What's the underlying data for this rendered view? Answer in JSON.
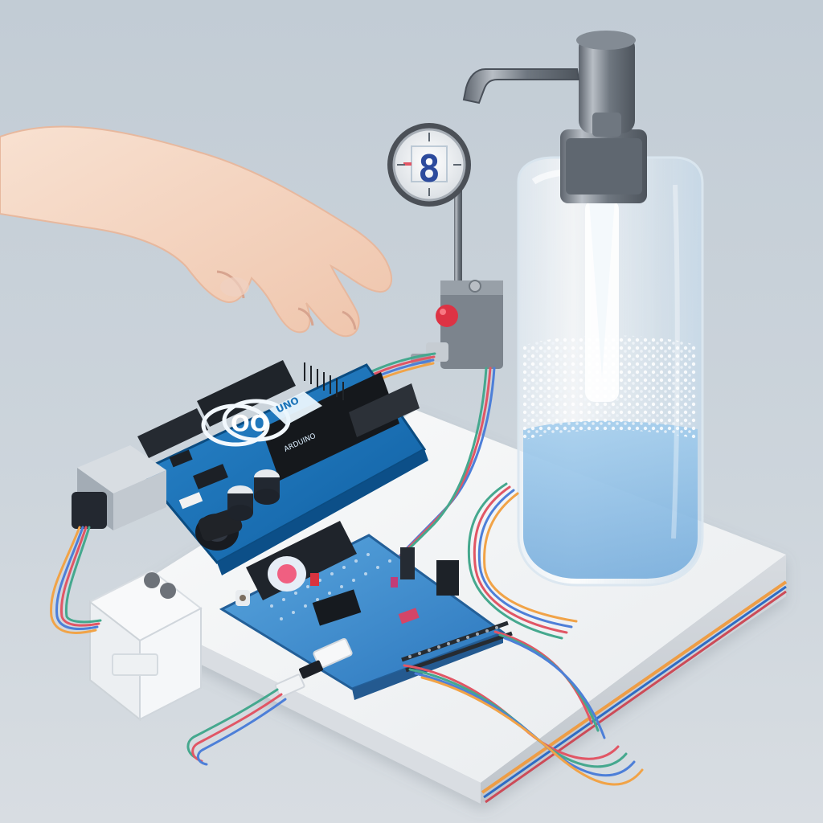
{
  "scene": {
    "board_logo_text": "OO",
    "board_label_text": "UNO",
    "board_small_text": "ARDUINO",
    "gauge_display_value": "8",
    "colors": {
      "background": "#c9d2d9",
      "board_blue": "#1a73b8",
      "board_blue_dark": "#0f4f86",
      "board_blue_light": "#4c97d3",
      "bottle": "#dce9f2",
      "liquid": "#8ec1e8",
      "foam": "#f5f8fb",
      "metal": "#7f8790",
      "base": "#f1f2f4",
      "wire_red": "#e15665",
      "wire_green": "#45a88e",
      "wire_blue": "#4d7fd8",
      "wire_orange": "#f1a347",
      "skin": "#f3d3bf"
    }
  }
}
